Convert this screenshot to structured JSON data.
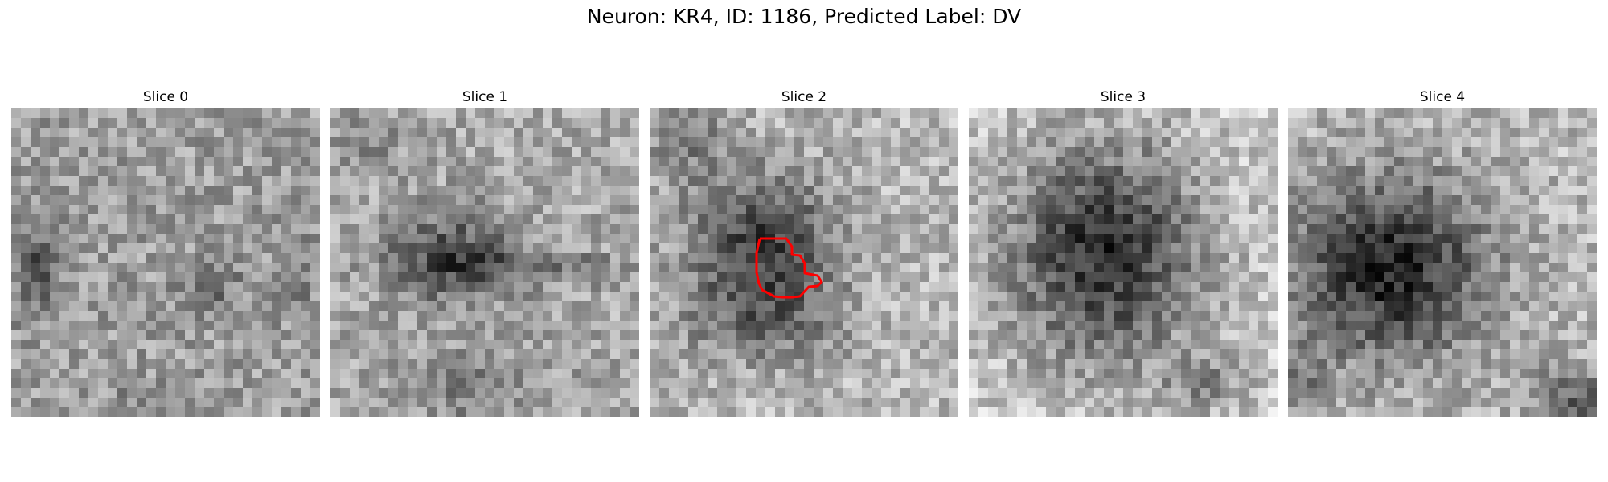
{
  "figure": {
    "title": "Neuron: KR4, ID: 1186, Predicted Label: DV"
  },
  "panels": [
    {
      "title": "Slice 0",
      "texture": "scattered",
      "roi_outline": false
    },
    {
      "title": "Slice 1",
      "texture": "faint dark center",
      "roi_outline": false
    },
    {
      "title": "Slice 2",
      "texture": "dark ring with outlined region",
      "roi_outline": true
    },
    {
      "title": "Slice 3",
      "texture": "large dark blob",
      "roi_outline": false
    },
    {
      "title": "Slice 4",
      "texture": "dark blob upper-left",
      "roi_outline": false
    }
  ],
  "colors": {
    "background": "#ffffff",
    "roi_outline": "#ff0000",
    "colormap": "grayscale"
  }
}
